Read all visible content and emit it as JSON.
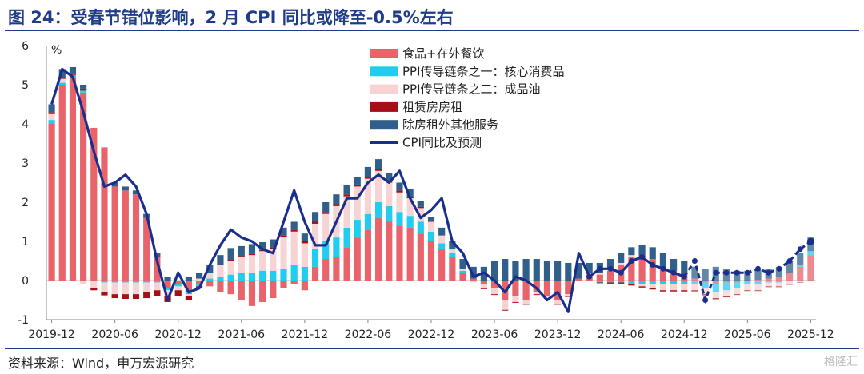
{
  "title": "图 24：受春节错位影响，2 月 CPI 同比或降至-0.5%左右",
  "source": "资料来源：Wind，申万宏源研究",
  "watermark": "格隆汇",
  "chart_data": {
    "type": "bar",
    "stacked": true,
    "ylabel": "%",
    "ylim": [
      -1,
      6
    ],
    "yticks": [
      -1,
      0,
      1,
      2,
      3,
      4,
      5,
      6
    ],
    "xticks": [
      "2019-12",
      "2020-06",
      "2020-12",
      "2021-06",
      "2021-12",
      "2022-06",
      "2022-12",
      "2023-06",
      "2023-12",
      "2024-06",
      "2024-12",
      "2025-06",
      "2025-12"
    ],
    "forecast_start": "2025-01",
    "legend_position": "top-center",
    "colors": {
      "food": "#e8636a",
      "core": "#22ccee",
      "oil": "#f7d3d3",
      "rent": "#a50f15",
      "services": "#2f5f8a",
      "line": "#1a2e8c"
    },
    "legend": [
      {
        "key": "food",
        "label": "食品+在外餐饮"
      },
      {
        "key": "core",
        "label": "PPI传导链条之一：核心消费品"
      },
      {
        "key": "oil",
        "label": "PPI传导链条之二：成品油"
      },
      {
        "key": "rent",
        "label": "租赁房房租"
      },
      {
        "key": "services",
        "label": "除房租外其他服务"
      },
      {
        "key": "line",
        "label": "CPI同比及预测"
      }
    ],
    "x": [
      "2019-12",
      "2020-01",
      "2020-02",
      "2020-03",
      "2020-04",
      "2020-05",
      "2020-06",
      "2020-07",
      "2020-08",
      "2020-09",
      "2020-10",
      "2020-11",
      "2020-12",
      "2021-01",
      "2021-02",
      "2021-03",
      "2021-04",
      "2021-05",
      "2021-06",
      "2021-07",
      "2021-08",
      "2021-09",
      "2021-10",
      "2021-11",
      "2021-12",
      "2022-01",
      "2022-02",
      "2022-03",
      "2022-04",
      "2022-05",
      "2022-06",
      "2022-07",
      "2022-08",
      "2022-09",
      "2022-10",
      "2022-11",
      "2022-12",
      "2023-01",
      "2023-02",
      "2023-03",
      "2023-04",
      "2023-05",
      "2023-06",
      "2023-07",
      "2023-08",
      "2023-09",
      "2023-10",
      "2023-11",
      "2023-12",
      "2024-01",
      "2024-02",
      "2024-03",
      "2024-04",
      "2024-05",
      "2024-06",
      "2024-07",
      "2024-08",
      "2024-09",
      "2024-10",
      "2024-11",
      "2024-12",
      "2025-01",
      "2025-02",
      "2025-03",
      "2025-04",
      "2025-05",
      "2025-06",
      "2025-07",
      "2025-08",
      "2025-09",
      "2025-10",
      "2025-11",
      "2025-12"
    ],
    "series": [
      {
        "key": "food",
        "name": "食品+在外餐饮",
        "values": [
          4.0,
          5.0,
          5.2,
          4.8,
          3.9,
          3.4,
          2.4,
          2.3,
          2.2,
          1.6,
          0.6,
          -0.2,
          -0.1,
          -0.3,
          -0.1,
          -0.15,
          -0.3,
          -0.35,
          -0.5,
          -0.65,
          -0.55,
          -0.45,
          -0.2,
          -0.1,
          -0.25,
          0.35,
          0.55,
          0.6,
          0.85,
          1.1,
          1.3,
          1.6,
          1.5,
          1.4,
          1.35,
          1.2,
          1.0,
          0.8,
          0.6,
          0.2,
          0.05,
          -0.1,
          -0.2,
          -0.5,
          -0.4,
          -0.5,
          -0.3,
          -0.4,
          -0.5,
          -0.35,
          0.05,
          0.15,
          0.15,
          0.25,
          0.4,
          0.6,
          0.6,
          0.55,
          0.3,
          0.25,
          0.15,
          0.05,
          -0.05,
          -0.1,
          -0.05,
          -0.05,
          0.0,
          0.02,
          0.05,
          0.1,
          0.2,
          0.35,
          0.65
        ]
      },
      {
        "key": "core",
        "name": "PPI传导链条之一：核心消费品",
        "values": [
          0.1,
          0.05,
          0.05,
          0.05,
          0.0,
          -0.05,
          -0.05,
          -0.05,
          -0.05,
          -0.05,
          -0.05,
          -0.05,
          -0.05,
          -0.05,
          -0.05,
          0.05,
          0.1,
          0.15,
          0.2,
          0.2,
          0.25,
          0.25,
          0.3,
          0.4,
          0.35,
          0.45,
          0.45,
          0.5,
          0.5,
          0.45,
          0.4,
          0.4,
          0.4,
          0.35,
          0.3,
          0.3,
          0.25,
          0.15,
          0.1,
          0.05,
          0.0,
          0.0,
          0.0,
          0.0,
          0.0,
          0.0,
          0.0,
          0.0,
          0.0,
          0.0,
          0.0,
          0.0,
          -0.05,
          -0.05,
          -0.05,
          -0.1,
          -0.1,
          -0.1,
          -0.1,
          -0.1,
          -0.1,
          -0.1,
          -0.15,
          -0.2,
          -0.2,
          -0.15,
          -0.1,
          -0.1,
          -0.05,
          -0.05,
          0.0,
          0.05,
          0.1
        ]
      },
      {
        "key": "oil",
        "name": "PPI传导链条之二：成品油",
        "values": [
          0.15,
          0.1,
          0.0,
          -0.1,
          -0.2,
          -0.25,
          -0.3,
          -0.3,
          -0.3,
          -0.25,
          -0.2,
          -0.15,
          -0.1,
          -0.05,
          0.05,
          0.15,
          0.3,
          0.35,
          0.4,
          0.45,
          0.5,
          0.55,
          0.8,
          0.85,
          0.6,
          0.65,
          0.7,
          0.8,
          0.8,
          0.85,
          0.9,
          0.8,
          0.6,
          0.5,
          0.45,
          0.35,
          0.25,
          0.2,
          0.1,
          0.05,
          -0.05,
          -0.1,
          -0.15,
          -0.25,
          -0.15,
          -0.1,
          -0.05,
          -0.05,
          -0.1,
          -0.05,
          0.0,
          0.05,
          0.05,
          0.05,
          0.05,
          0.05,
          -0.05,
          -0.1,
          -0.15,
          -0.15,
          -0.15,
          -0.15,
          -0.15,
          -0.15,
          -0.15,
          -0.15,
          -0.15,
          -0.15,
          -0.1,
          -0.1,
          -0.1,
          -0.05,
          0.0
        ]
      },
      {
        "key": "rent",
        "name": "租赁房房租",
        "values": [
          0.05,
          0.05,
          0.05,
          0.05,
          -0.05,
          -0.08,
          -0.1,
          -0.12,
          -0.12,
          -0.15,
          -0.15,
          -0.15,
          -0.15,
          -0.1,
          -0.05,
          0.0,
          0.0,
          0.03,
          0.03,
          0.03,
          0.03,
          0.05,
          0.05,
          0.05,
          0.05,
          0.05,
          0.05,
          0.05,
          0.05,
          0.05,
          0.05,
          0.05,
          0.05,
          0.05,
          0.03,
          0.03,
          0.03,
          0.0,
          0.0,
          0.0,
          0.0,
          -0.02,
          -0.02,
          -0.02,
          -0.02,
          -0.02,
          -0.02,
          -0.02,
          -0.02,
          -0.02,
          -0.02,
          -0.02,
          -0.02,
          -0.03,
          -0.03,
          -0.03,
          -0.03,
          -0.03,
          -0.03,
          -0.03,
          -0.03,
          -0.03,
          -0.03,
          -0.03,
          -0.03,
          -0.02,
          -0.02,
          -0.02,
          -0.02,
          -0.02,
          -0.01,
          -0.01,
          -0.01
        ]
      },
      {
        "key": "services",
        "name": "除房租外其他服务",
        "values": [
          0.2,
          0.2,
          0.15,
          0.1,
          0.0,
          0.0,
          0.1,
          0.1,
          0.1,
          0.1,
          0.1,
          0.1,
          0.0,
          0.1,
          0.15,
          0.2,
          0.25,
          0.3,
          0.25,
          0.25,
          0.2,
          0.2,
          0.2,
          0.2,
          0.2,
          0.25,
          0.25,
          0.25,
          0.25,
          0.2,
          0.25,
          0.25,
          0.2,
          0.2,
          0.2,
          0.15,
          0.1,
          0.2,
          0.2,
          0.25,
          0.3,
          0.35,
          0.5,
          0.55,
          0.5,
          0.55,
          0.55,
          0.5,
          0.5,
          0.45,
          0.4,
          0.25,
          0.25,
          0.25,
          0.25,
          0.2,
          0.3,
          0.3,
          0.4,
          0.3,
          0.35,
          0.3,
          0.3,
          0.35,
          0.3,
          0.25,
          0.25,
          0.25,
          0.25,
          0.25,
          0.3,
          0.3,
          0.35
        ]
      }
    ],
    "line": {
      "key": "line",
      "name": "CPI同比及预测",
      "values": [
        4.5,
        5.4,
        5.2,
        4.3,
        3.3,
        2.4,
        2.5,
        2.7,
        2.4,
        1.7,
        0.5,
        -0.5,
        0.2,
        -0.3,
        -0.2,
        0.4,
        0.9,
        1.3,
        1.1,
        1.0,
        0.8,
        0.7,
        1.5,
        2.3,
        1.5,
        0.9,
        0.9,
        1.5,
        2.1,
        2.1,
        2.5,
        2.7,
        2.5,
        2.8,
        2.1,
        1.6,
        1.8,
        2.1,
        1.0,
        0.7,
        0.1,
        0.2,
        0.0,
        -0.3,
        0.1,
        0.0,
        -0.2,
        -0.5,
        -0.3,
        -0.8,
        0.7,
        0.1,
        0.3,
        0.3,
        0.2,
        0.5,
        0.6,
        0.4,
        0.3,
        0.2,
        0.1,
        0.5,
        -0.5,
        0.2,
        0.2,
        0.2,
        0.2,
        0.3,
        0.2,
        0.3,
        0.5,
        0.8,
        1.0
      ]
    }
  }
}
